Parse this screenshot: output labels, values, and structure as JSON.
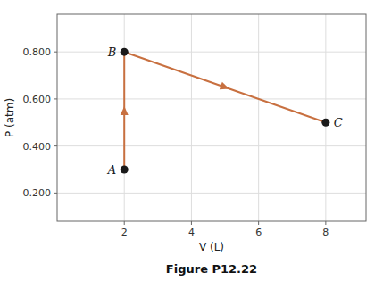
{
  "chart_data": {
    "type": "line",
    "title": "Figure P12.22",
    "x_label": "V (L)",
    "y_label": "P (atm)",
    "x": [
      2,
      2,
      8
    ],
    "series": [
      {
        "type": "line",
        "color": "#C87040",
        "values": [
          0.3,
          0.8,
          0.5
        ]
      },
      {
        "type": "scatter",
        "color": "#1a1a1a",
        "marker": "circle",
        "values": [
          0.3,
          0.8,
          0.5
        ]
      }
    ],
    "annotations": [
      "A",
      "B",
      "C"
    ],
    "xlim": [
      0,
      9.2
    ],
    "ylim": [
      0.08,
      0.96
    ],
    "xticks": [
      2,
      4,
      6,
      8
    ],
    "yticks": [
      {
        "value": 0.2,
        "label": "0.200"
      },
      {
        "value": 0.4,
        "label": "0.400"
      },
      {
        "value": 0.6,
        "label": "0.600"
      },
      {
        "value": 0.8,
        "label": "0.800"
      }
    ],
    "grid": true
  }
}
